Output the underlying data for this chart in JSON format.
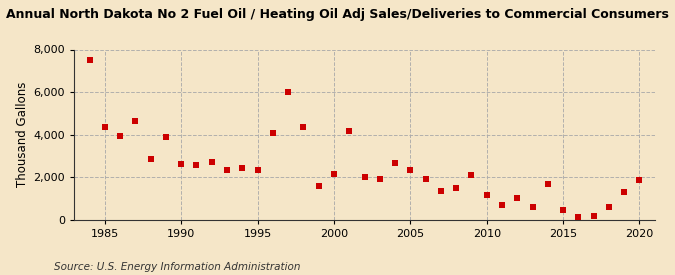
{
  "title": "Annual North Dakota No 2 Fuel Oil / Heating Oil Adj Sales/Deliveries to Commercial Consumers",
  "ylabel": "Thousand Gallons",
  "source": "Source: U.S. Energy Information Administration",
  "background_color": "#f5e6c8",
  "plot_bg_color": "#f5e6c8",
  "marker_color": "#cc0000",
  "grid_color": "#aaaaaa",
  "spine_color": "#333333",
  "years": [
    1984,
    1985,
    1986,
    1987,
    1988,
    1989,
    1990,
    1991,
    1992,
    1993,
    1994,
    1995,
    1996,
    1997,
    1998,
    1999,
    2000,
    2001,
    2002,
    2003,
    2004,
    2005,
    2006,
    2007,
    2008,
    2009,
    2010,
    2011,
    2012,
    2013,
    2014,
    2015,
    2016,
    2017,
    2018,
    2019,
    2020
  ],
  "values": [
    7520,
    4380,
    3960,
    4640,
    2850,
    3880,
    2620,
    2580,
    2710,
    2330,
    2420,
    2360,
    4080,
    5990,
    4350,
    1580,
    2180,
    4160,
    2030,
    1940,
    2680,
    2360,
    1930,
    1370,
    1510,
    2120,
    1170,
    700,
    1030,
    590,
    1680,
    490,
    130,
    170,
    600,
    1300,
    1890
  ],
  "ylim": [
    0,
    8000
  ],
  "yticks": [
    0,
    2000,
    4000,
    6000,
    8000
  ],
  "xlim": [
    1983,
    2021
  ],
  "xticks": [
    1985,
    1990,
    1995,
    2000,
    2005,
    2010,
    2015,
    2020
  ],
  "title_fontsize": 9.0,
  "label_fontsize": 8.5,
  "tick_fontsize": 8.0,
  "source_fontsize": 7.5,
  "marker_size": 22
}
